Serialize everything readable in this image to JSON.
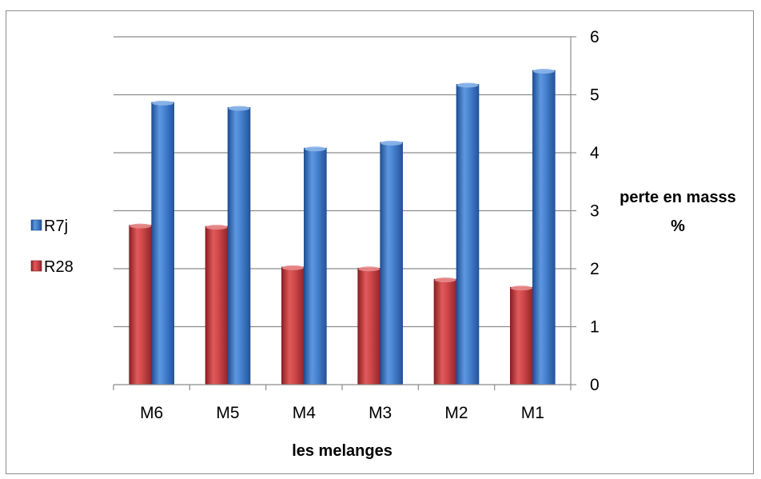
{
  "chart_data": {
    "type": "bar",
    "categories": [
      "M6",
      "M5",
      "M4",
      "M3",
      "M2",
      "M1"
    ],
    "series": [
      {
        "name": "R28",
        "values": [
          2.75,
          2.73,
          2.03,
          2.01,
          1.82,
          1.68
        ],
        "color": "#c0393b"
      },
      {
        "name": "R7j",
        "values": [
          4.87,
          4.78,
          4.08,
          4.18,
          5.18,
          5.42
        ],
        "color": "#3a78c9"
      }
    ],
    "legend_order": [
      "R7j",
      "R28"
    ],
    "legend_position": "left",
    "xlabel": "les melanges",
    "ylabel_lines": [
      "perte en masss",
      "%"
    ],
    "y_axis_side": "right",
    "ylim": [
      0,
      6
    ],
    "yticks": [
      0,
      1,
      2,
      3,
      4,
      5,
      6
    ],
    "grid": true
  }
}
